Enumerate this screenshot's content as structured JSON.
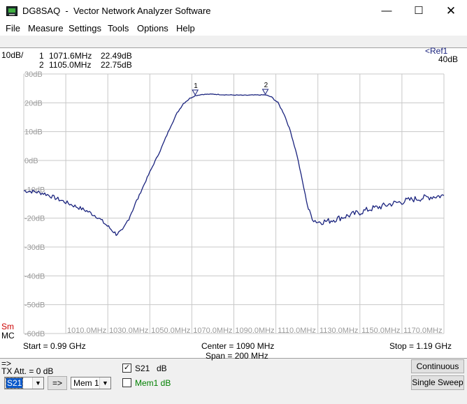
{
  "window": {
    "app_name": "DG8SAQ",
    "title": "Vector Network Analyzer Software",
    "min_glyph": "—",
    "max_glyph": "☐",
    "close_glyph": "✕"
  },
  "menu": [
    "File",
    "Measure",
    "Settings",
    "Tools",
    "Options",
    "Help"
  ],
  "plot": {
    "scale_label": "10dB/",
    "ref_label": "<Ref1",
    "ref_value": "40dB",
    "markers": [
      {
        "id": "1",
        "freq": "1071.6MHz",
        "value": "22.49dB"
      },
      {
        "id": "2",
        "freq": "1105.0MHz",
        "value": "22.75dB"
      }
    ],
    "sm_label": "Sm",
    "mc_label": "MC",
    "start": "Start = 0.99 GHz",
    "center": "Center = 1090 MHz",
    "span": "Span = 200 MHz",
    "stop": "Stop = 1.19 GHz",
    "trace_color": "#1a237e",
    "grid_color": "#c8c8c8"
  },
  "chart_data": {
    "type": "line",
    "xlabel": "",
    "ylabel": "",
    "xlim": [
      990,
      1190
    ],
    "ylim": [
      -60,
      30
    ],
    "x_ticks": [
      "1010.0MHz",
      "1030.0MHz",
      "1050.0MHz",
      "1070.0MHz",
      "1090.0MHz",
      "1110.0MHz",
      "1130.0MHz",
      "1150.0MHz",
      "1170.0MHz"
    ],
    "y_ticks": [
      "30dB",
      "20dB",
      "10dB",
      "0dB",
      "-10dB",
      "-20dB",
      "-30dB",
      "-40dB",
      "-50dB",
      "-60dB"
    ],
    "grid": true,
    "series": [
      {
        "name": "S21",
        "x": [
          990,
          995,
          1000,
          1005,
          1010,
          1015,
          1020,
          1025,
          1028,
          1031,
          1034,
          1037,
          1040,
          1045,
          1050,
          1055,
          1060,
          1063,
          1066,
          1069,
          1071.6,
          1075,
          1080,
          1085,
          1090,
          1095,
          1100,
          1105,
          1108,
          1111,
          1114,
          1117,
          1120,
          1122,
          1124,
          1125,
          1126,
          1128,
          1130,
          1135,
          1140,
          1145,
          1150,
          1155,
          1160,
          1165,
          1170,
          1175,
          1180,
          1185,
          1190
        ],
        "y": [
          -10.5,
          -10.8,
          -11.5,
          -13.0,
          -14.5,
          -16.0,
          -17.5,
          -19.5,
          -21.5,
          -23.5,
          -25.5,
          -24.5,
          -20.0,
          -12.0,
          -4.0,
          3.5,
          12.0,
          16.5,
          19.8,
          21.5,
          22.49,
          22.9,
          23.0,
          22.8,
          22.7,
          22.6,
          22.7,
          22.75,
          22.0,
          20.0,
          16.0,
          10.0,
          2.0,
          -5.0,
          -12.0,
          -15.5,
          -18.0,
          -20.5,
          -21.3,
          -21.0,
          -20.0,
          -19.0,
          -18.0,
          -16.8,
          -16.0,
          -15.0,
          -14.3,
          -13.5,
          -13.0,
          -12.5,
          -12.2
        ]
      }
    ]
  },
  "controls": {
    "arrow_indicator": "=>",
    "tx_att": "TX Att. = 0 dB",
    "trace_select": "S21",
    "transfer_button": "=>",
    "memory_select": "Mem 1",
    "s21_label": "S21",
    "s21_unit": "dB",
    "s21_checked": "✓",
    "mem1_label": "Mem1 dB",
    "mem1_color": "#008000",
    "continuous_button": "Continuous",
    "single_sweep_button": "Single Sweep"
  }
}
